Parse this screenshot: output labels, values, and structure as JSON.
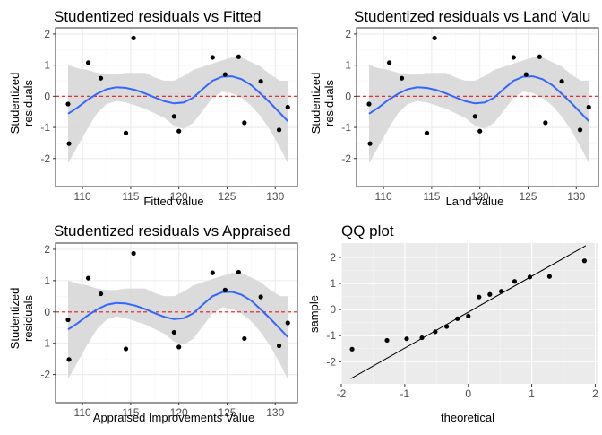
{
  "colors": {
    "panel_bg": "#ebebeb",
    "panel_bg_resid": "#ffffff",
    "grid_major": "#ebebeb",
    "grid_minor": "#f5f5f5",
    "border": "#333333",
    "point": "#000000",
    "smooth_line": "#3366ff",
    "ribbon": "#d9d9d9",
    "zero_line": "#e41a1c",
    "qq_grid_major": "#ffffff",
    "qq_grid_minor": "#f5f5f5"
  },
  "chart_data": [
    {
      "type": "scatter",
      "title": "Studentized residuals vs Fitted",
      "xlabel": "Fitted value",
      "ylabel": "Studentized residuals",
      "xlim": [
        107.2,
        132.3
      ],
      "ylim": [
        -2.9,
        2.2
      ],
      "xticks": [
        110,
        115,
        120,
        125,
        130
      ],
      "yticks": [
        -2,
        -1,
        0,
        1,
        2
      ],
      "hline": 0,
      "smooth": {
        "x": [
          108.5,
          109.5,
          110.5,
          111.5,
          112.5,
          113.5,
          114.5,
          115.5,
          116.5,
          117.5,
          118.5,
          119.5,
          120.5,
          121.5,
          122.5,
          123.5,
          124.5,
          125.5,
          126.5,
          127.5,
          128.5,
          129.5,
          130.5,
          131.3
        ],
        "y": [
          -0.56,
          -0.36,
          -0.12,
          0.08,
          0.23,
          0.29,
          0.27,
          0.2,
          0.09,
          -0.04,
          -0.16,
          -0.23,
          -0.2,
          -0.04,
          0.24,
          0.5,
          0.63,
          0.64,
          0.55,
          0.36,
          0.08,
          -0.22,
          -0.54,
          -0.8
        ],
        "lower": [
          -2.15,
          -1.6,
          -1.05,
          -0.55,
          -0.25,
          -0.15,
          -0.2,
          -0.3,
          -0.4,
          -0.55,
          -0.7,
          -0.95,
          -1.05,
          -0.85,
          -0.45,
          -0.05,
          0.15,
          0.1,
          -0.05,
          -0.3,
          -0.65,
          -1.1,
          -1.65,
          -2.15
        ],
        "upper": [
          1.0,
          0.9,
          0.85,
          0.75,
          0.7,
          0.7,
          0.75,
          0.75,
          0.75,
          0.6,
          0.5,
          0.5,
          0.65,
          0.85,
          0.95,
          1.05,
          1.15,
          1.25,
          1.25,
          1.1,
          0.95,
          0.7,
          0.5,
          0.5
        ]
      },
      "points": {
        "x": [
          108.5,
          108.6,
          110.6,
          111.9,
          114.5,
          115.3,
          119.5,
          120.0,
          123.5,
          124.8,
          126.2,
          126.8,
          128.5,
          130.4,
          131.3
        ],
        "y": [
          -0.25,
          -1.52,
          1.08,
          0.58,
          -1.18,
          1.87,
          -0.65,
          -1.12,
          1.25,
          0.7,
          1.27,
          -0.85,
          0.48,
          -1.08,
          -0.35
        ]
      }
    },
    {
      "type": "scatter",
      "title": "Studentized residuals vs Land Valu",
      "xlabel": "Land Value",
      "ylabel": "Studentized residuals",
      "xlim": [
        107.2,
        132.3
      ],
      "ylim": [
        -2.9,
        2.2
      ],
      "xticks": [
        110,
        115,
        120,
        125,
        130
      ],
      "yticks": [
        -2,
        -1,
        0,
        1,
        2
      ],
      "hline": 0,
      "smooth": {
        "x": [
          108.5,
          109.5,
          110.5,
          111.5,
          112.5,
          113.5,
          114.5,
          115.5,
          116.5,
          117.5,
          118.5,
          119.5,
          120.5,
          121.5,
          122.5,
          123.5,
          124.5,
          125.5,
          126.5,
          127.5,
          128.5,
          129.5,
          130.5,
          131.3
        ],
        "y": [
          -0.56,
          -0.36,
          -0.12,
          0.08,
          0.23,
          0.29,
          0.27,
          0.2,
          0.09,
          -0.04,
          -0.16,
          -0.23,
          -0.2,
          -0.04,
          0.24,
          0.5,
          0.63,
          0.64,
          0.55,
          0.36,
          0.08,
          -0.22,
          -0.54,
          -0.8
        ],
        "lower": [
          -2.15,
          -1.6,
          -1.05,
          -0.55,
          -0.25,
          -0.15,
          -0.2,
          -0.3,
          -0.4,
          -0.55,
          -0.7,
          -0.95,
          -1.05,
          -0.85,
          -0.45,
          -0.05,
          0.15,
          0.1,
          -0.05,
          -0.3,
          -0.65,
          -1.1,
          -1.65,
          -2.15
        ],
        "upper": [
          1.0,
          0.9,
          0.85,
          0.75,
          0.7,
          0.7,
          0.75,
          0.75,
          0.75,
          0.6,
          0.5,
          0.5,
          0.65,
          0.85,
          0.95,
          1.05,
          1.15,
          1.25,
          1.25,
          1.1,
          0.95,
          0.7,
          0.5,
          0.5
        ]
      },
      "points": {
        "x": [
          108.5,
          108.6,
          110.6,
          111.9,
          114.5,
          115.3,
          119.5,
          120.0,
          123.5,
          124.8,
          126.2,
          126.8,
          128.5,
          130.4,
          131.3
        ],
        "y": [
          -0.25,
          -1.52,
          1.08,
          0.58,
          -1.18,
          1.87,
          -0.65,
          -1.12,
          1.25,
          0.7,
          1.27,
          -0.85,
          0.48,
          -1.08,
          -0.35
        ]
      }
    },
    {
      "type": "scatter",
      "title": "Studentized residuals vs Appraised",
      "xlabel": "Appraised Improvements Value",
      "ylabel": "Studentized residuals",
      "xlim": [
        107.2,
        132.3
      ],
      "ylim": [
        -2.9,
        2.2
      ],
      "xticks": [
        110,
        115,
        120,
        125,
        130
      ],
      "yticks": [
        -2,
        -1,
        0,
        1,
        2
      ],
      "hline": 0,
      "smooth": {
        "x": [
          108.5,
          109.5,
          110.5,
          111.5,
          112.5,
          113.5,
          114.5,
          115.5,
          116.5,
          117.5,
          118.5,
          119.5,
          120.5,
          121.5,
          122.5,
          123.5,
          124.5,
          125.5,
          126.5,
          127.5,
          128.5,
          129.5,
          130.5,
          131.3
        ],
        "y": [
          -0.56,
          -0.36,
          -0.12,
          0.08,
          0.23,
          0.29,
          0.27,
          0.2,
          0.09,
          -0.04,
          -0.16,
          -0.23,
          -0.2,
          -0.04,
          0.24,
          0.5,
          0.63,
          0.64,
          0.55,
          0.36,
          0.08,
          -0.22,
          -0.54,
          -0.8
        ],
        "lower": [
          -2.15,
          -1.6,
          -1.05,
          -0.55,
          -0.25,
          -0.15,
          -0.2,
          -0.3,
          -0.4,
          -0.55,
          -0.7,
          -0.95,
          -1.05,
          -0.85,
          -0.45,
          -0.05,
          0.15,
          0.1,
          -0.05,
          -0.3,
          -0.65,
          -1.1,
          -1.65,
          -2.15
        ],
        "upper": [
          1.0,
          0.9,
          0.85,
          0.75,
          0.7,
          0.7,
          0.75,
          0.75,
          0.75,
          0.6,
          0.5,
          0.5,
          0.65,
          0.85,
          0.95,
          1.05,
          1.15,
          1.25,
          1.25,
          1.1,
          0.95,
          0.7,
          0.5,
          0.5
        ]
      },
      "points": {
        "x": [
          108.5,
          108.6,
          110.6,
          111.9,
          114.5,
          115.3,
          119.5,
          120.0,
          123.5,
          124.8,
          126.2,
          126.8,
          128.5,
          130.4,
          131.3
        ],
        "y": [
          -0.25,
          -1.52,
          1.08,
          0.58,
          -1.18,
          1.87,
          -0.65,
          -1.12,
          1.25,
          0.7,
          1.27,
          -0.85,
          0.48,
          -1.08,
          -0.35
        ]
      }
    },
    {
      "type": "scatter",
      "title": "QQ plot",
      "xlabel": "theoretical",
      "ylabel": "sample",
      "xlim": [
        -2.0,
        2.05
      ],
      "ylim": [
        -2.85,
        2.55
      ],
      "xticks": [
        -2,
        -1,
        0,
        1,
        2
      ],
      "yticks": [
        -2,
        -1,
        0,
        1,
        2
      ],
      "ref_line": {
        "x": [
          -1.85,
          1.85
        ],
        "y": [
          -2.65,
          2.45
        ]
      },
      "points": {
        "x": [
          -1.83,
          -1.28,
          -0.97,
          -0.73,
          -0.52,
          -0.34,
          -0.17,
          0.0,
          0.17,
          0.34,
          0.52,
          0.73,
          0.97,
          1.28,
          1.83
        ],
        "y": [
          -1.52,
          -1.18,
          -1.12,
          -1.08,
          -0.85,
          -0.65,
          -0.35,
          -0.25,
          0.48,
          0.58,
          0.7,
          1.08,
          1.25,
          1.27,
          1.87
        ]
      }
    }
  ]
}
